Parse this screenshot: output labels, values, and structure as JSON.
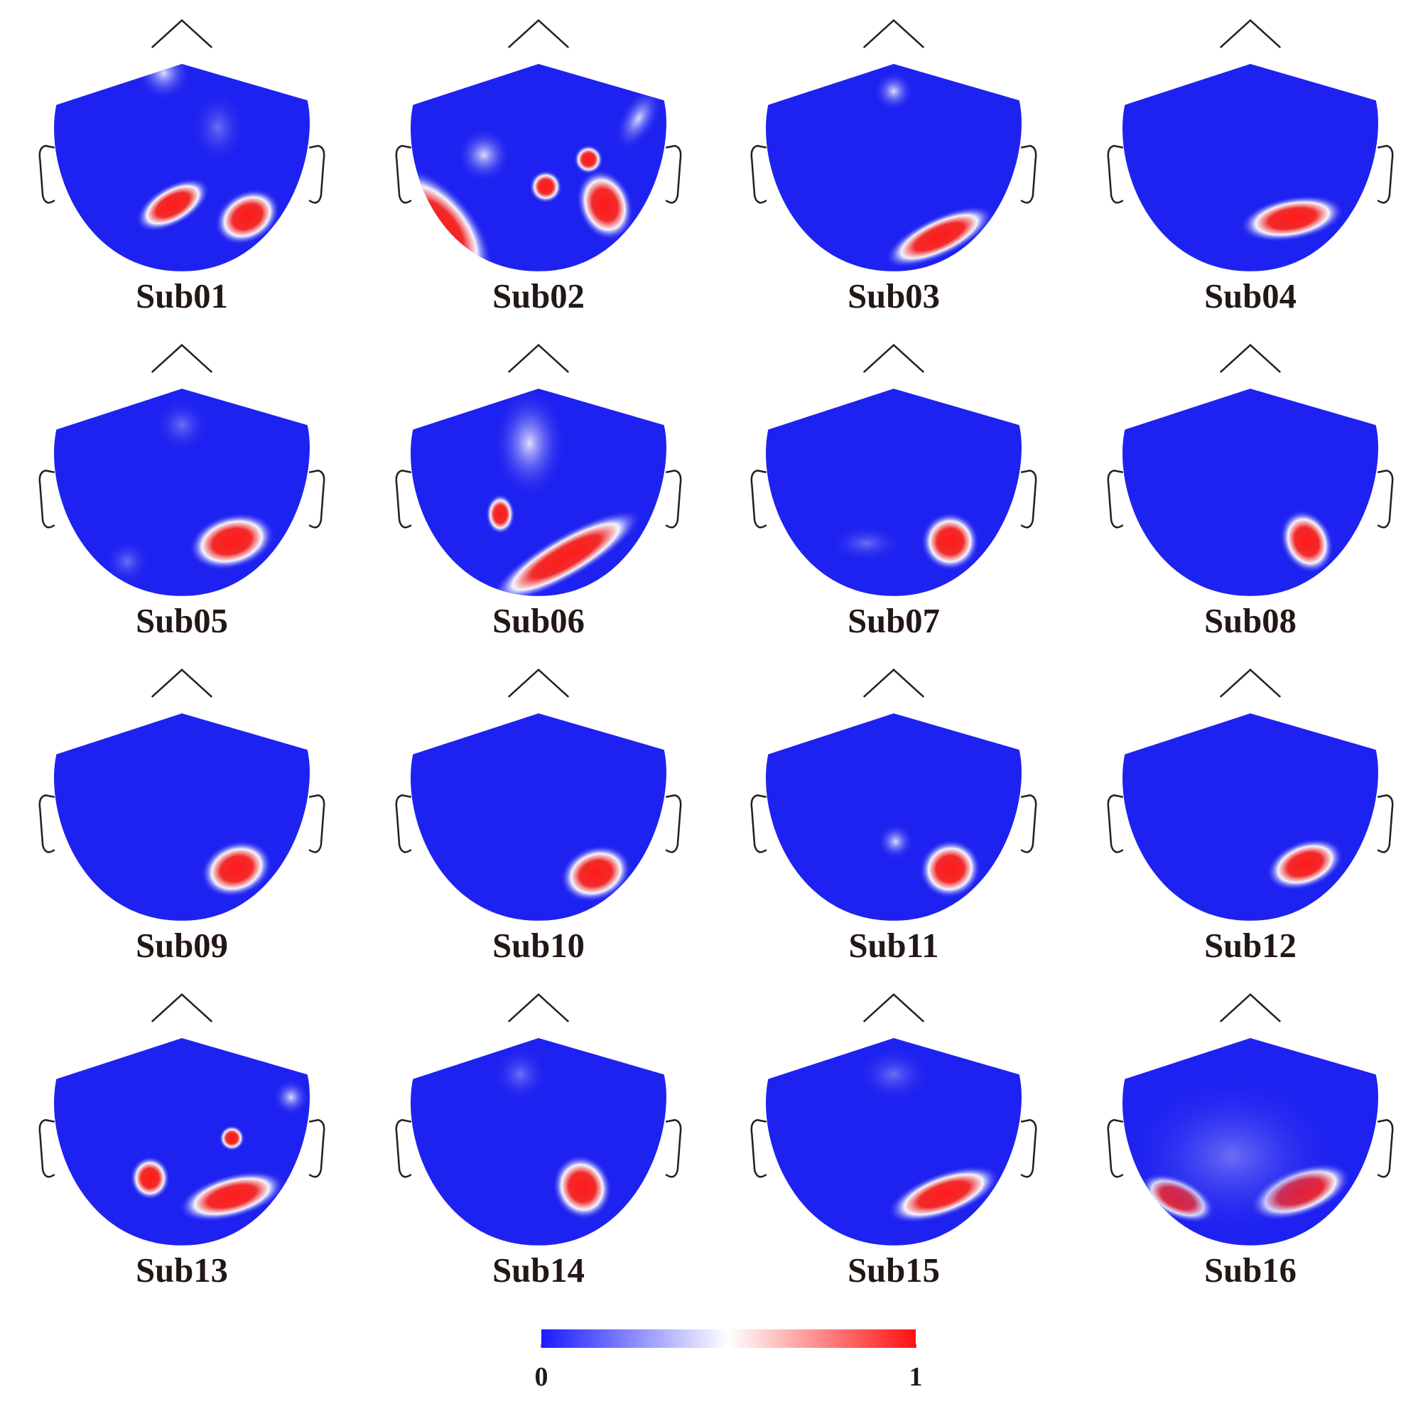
{
  "panels": [
    "Sub01",
    "Sub02",
    "Sub03",
    "Sub04",
    "Sub05",
    "Sub06",
    "Sub07",
    "Sub08",
    "Sub09",
    "Sub10",
    "Sub11",
    "Sub12",
    "Sub13",
    "Sub14",
    "Sub15",
    "Sub16"
  ],
  "colorbar": {
    "lim": [
      0,
      1
    ],
    "ticks": [
      0,
      1
    ],
    "colors": [
      "#1a1aff",
      "#ffffff",
      "#ff1010"
    ]
  }
}
